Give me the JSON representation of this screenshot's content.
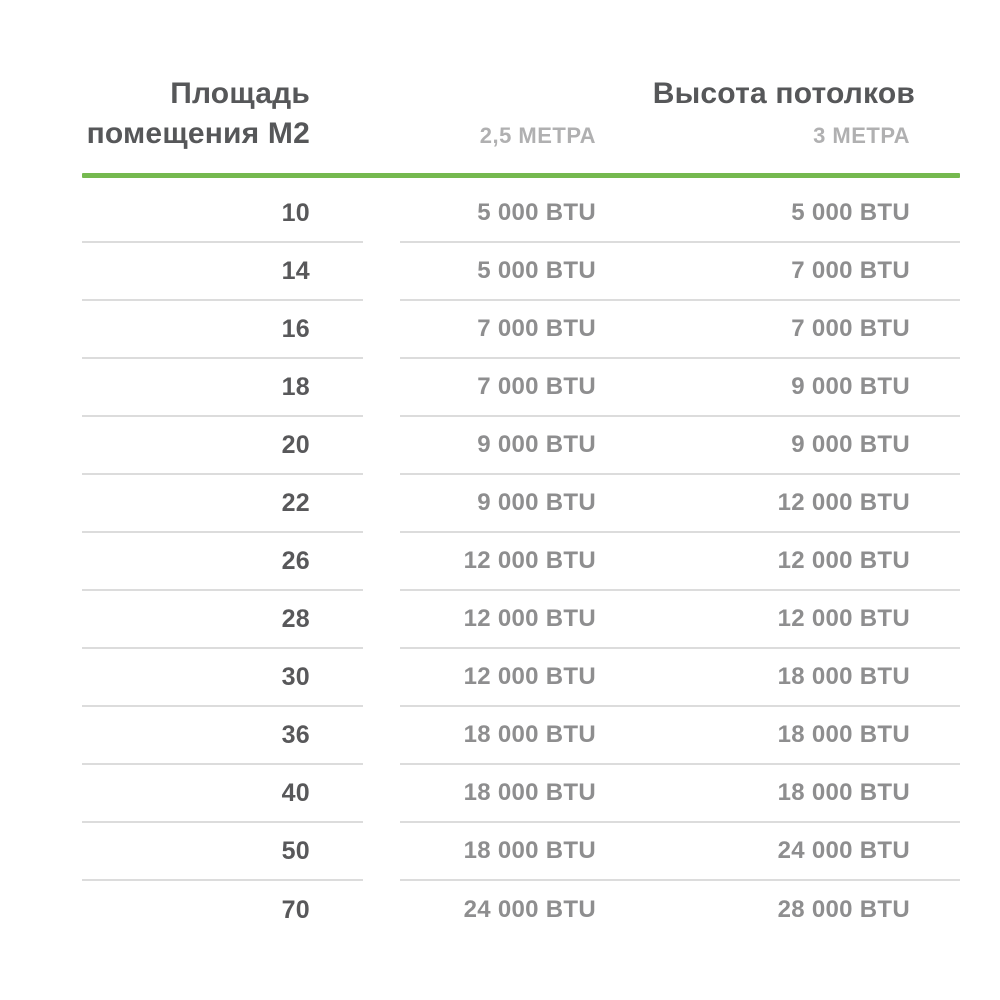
{
  "colors": {
    "accent_green": "#75b94f",
    "header_text": "#565759",
    "subheader_text": "#b0b0b1",
    "area_text": "#58585a",
    "btu_text": "#8e8e8f",
    "separator": "#dcdcdc",
    "background": "#ffffff"
  },
  "table": {
    "area_header_lines": [
      "Площадь",
      "помещения М2"
    ],
    "ceiling_header": "Высота потолков",
    "subcolumns": [
      "2,5 МЕТРА",
      "3 МЕТРА"
    ],
    "rows": [
      {
        "area": "10",
        "btu_2_5m": "5 000 BTU",
        "btu_3m": "5 000 BTU"
      },
      {
        "area": "14",
        "btu_2_5m": "5 000 BTU",
        "btu_3m": "7 000 BTU"
      },
      {
        "area": "16",
        "btu_2_5m": "7 000 BTU",
        "btu_3m": "7 000 BTU"
      },
      {
        "area": "18",
        "btu_2_5m": "7 000 BTU",
        "btu_3m": "9 000 BTU"
      },
      {
        "area": "20",
        "btu_2_5m": "9 000 BTU",
        "btu_3m": "9 000 BTU"
      },
      {
        "area": "22",
        "btu_2_5m": "9 000 BTU",
        "btu_3m": "12 000 BTU"
      },
      {
        "area": "26",
        "btu_2_5m": "12 000 BTU",
        "btu_3m": "12 000 BTU"
      },
      {
        "area": "28",
        "btu_2_5m": "12 000 BTU",
        "btu_3m": "12 000 BTU"
      },
      {
        "area": "30",
        "btu_2_5m": "12 000 BTU",
        "btu_3m": "18 000 BTU"
      },
      {
        "area": "36",
        "btu_2_5m": "18 000 BTU",
        "btu_3m": "18 000 BTU"
      },
      {
        "area": "40",
        "btu_2_5m": "18 000 BTU",
        "btu_3m": "18 000 BTU"
      },
      {
        "area": "50",
        "btu_2_5m": "18 000 BTU",
        "btu_3m": "24 000 BTU"
      },
      {
        "area": "70",
        "btu_2_5m": "24 000 BTU",
        "btu_3m": "28 000 BTU"
      }
    ]
  },
  "chart_data": {
    "type": "table",
    "title": "Высота потолков",
    "columns": [
      "Площадь помещения М2",
      "2,5 МЕТРА",
      "3 МЕТРА"
    ],
    "rows": [
      [
        "10",
        "5 000 BTU",
        "5 000 BTU"
      ],
      [
        "14",
        "5 000 BTU",
        "7 000 BTU"
      ],
      [
        "16",
        "7 000 BTU",
        "7 000 BTU"
      ],
      [
        "18",
        "7 000 BTU",
        "9 000 BTU"
      ],
      [
        "20",
        "9 000 BTU",
        "9 000 BTU"
      ],
      [
        "22",
        "9 000 BTU",
        "12 000 BTU"
      ],
      [
        "26",
        "12 000 BTU",
        "12 000 BTU"
      ],
      [
        "28",
        "12 000 BTU",
        "12 000 BTU"
      ],
      [
        "30",
        "12 000 BTU",
        "18 000 BTU"
      ],
      [
        "36",
        "18 000 BTU",
        "18 000 BTU"
      ],
      [
        "40",
        "18 000 BTU",
        "18 000 BTU"
      ],
      [
        "50",
        "18 000 BTU",
        "24 000 BTU"
      ],
      [
        "70",
        "24 000 BTU",
        "28 000 BTU"
      ]
    ]
  }
}
